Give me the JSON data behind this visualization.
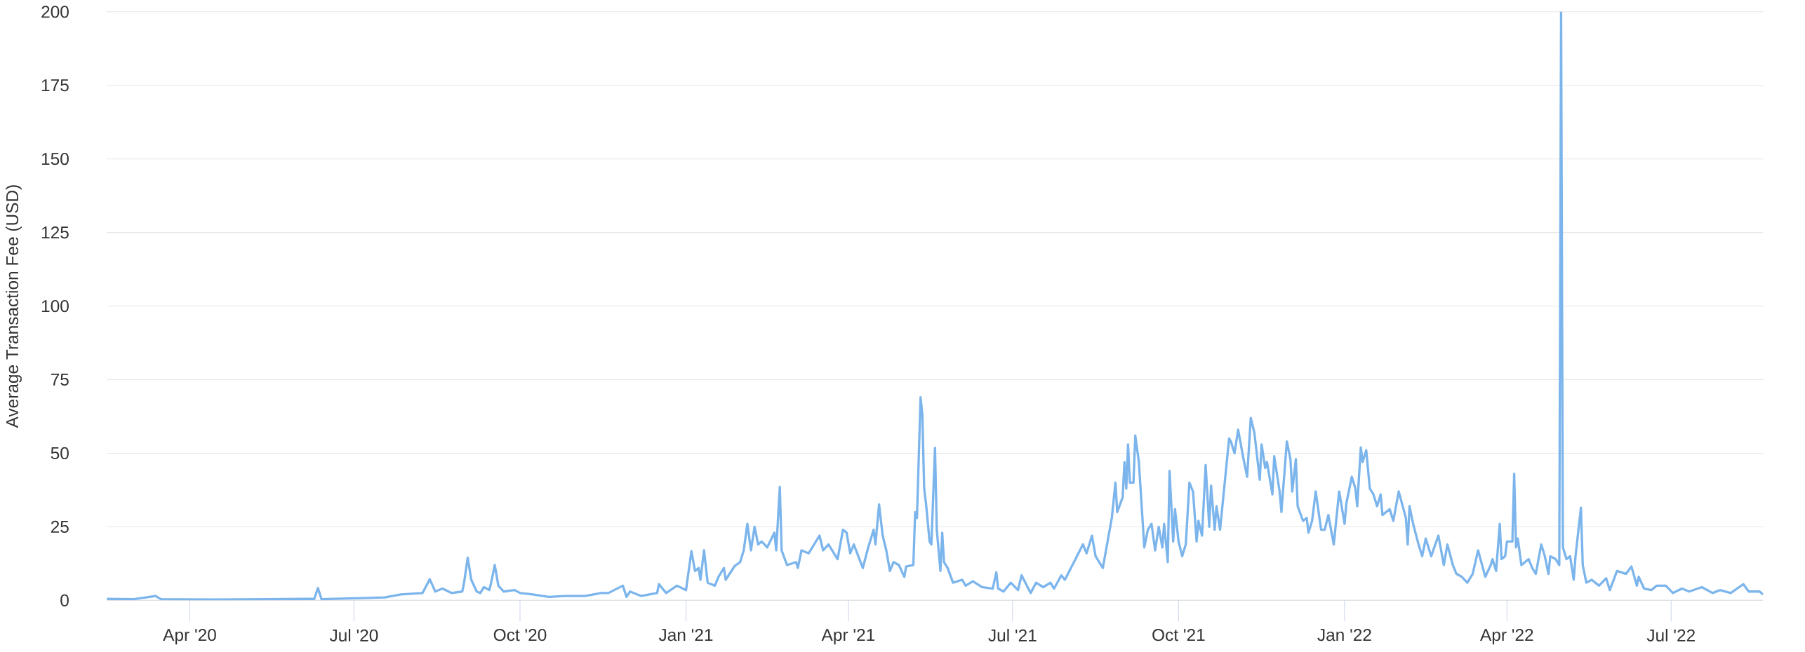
{
  "chart_data": {
    "type": "line",
    "ylabel": "Average Transaction Fee (USD)",
    "xlim": [
      "2020-02-15",
      "2022-08-21"
    ],
    "xticks": [
      {
        "value": "2020-04-01",
        "label": "Apr '20"
      },
      {
        "value": "2020-07-01",
        "label": "Jul '20"
      },
      {
        "value": "2020-10-01",
        "label": "Oct '20"
      },
      {
        "value": "2021-01-01",
        "label": "Jan '21"
      },
      {
        "value": "2021-04-01",
        "label": "Apr '21"
      },
      {
        "value": "2021-07-01",
        "label": "Jul '21"
      },
      {
        "value": "2021-10-01",
        "label": "Oct '21"
      },
      {
        "value": "2022-01-01",
        "label": "Jan '22"
      },
      {
        "value": "2022-04-01",
        "label": "Apr '22"
      },
      {
        "value": "2022-07-01",
        "label": "Jul '22"
      }
    ],
    "ylim": [
      0,
      200
    ],
    "yticks": [
      0,
      25,
      50,
      75,
      100,
      125,
      150,
      175,
      200
    ],
    "grid": "y",
    "marker": "none",
    "line_style": "solid",
    "x": [
      "2020-02-15",
      "2020-03-01",
      "2020-03-13",
      "2020-03-16",
      "2020-04-15",
      "2020-05-15",
      "2020-06-03",
      "2020-06-09",
      "2020-06-11",
      "2020-06-13",
      "2020-07-01",
      "2020-07-18",
      "2020-07-27",
      "2020-08-08",
      "2020-08-12",
      "2020-08-15",
      "2020-08-19",
      "2020-08-24",
      "2020-08-30",
      "2020-08-31",
      "2020-09-02",
      "2020-09-04",
      "2020-09-07",
      "2020-09-09",
      "2020-09-11",
      "2020-09-14",
      "2020-09-15",
      "2020-09-17",
      "2020-09-19",
      "2020-09-22",
      "2020-09-28",
      "2020-10-01",
      "2020-10-08",
      "2020-10-17",
      "2020-10-26",
      "2020-11-06",
      "2020-11-15",
      "2020-11-19",
      "2020-11-27",
      "2020-11-29",
      "2020-12-01",
      "2020-12-07",
      "2020-12-16",
      "2020-12-17",
      "2020-12-21",
      "2020-12-27",
      "2021-01-01",
      "2021-01-04",
      "2021-01-06",
      "2021-01-08",
      "2021-01-09",
      "2021-01-11",
      "2021-01-13",
      "2021-01-17",
      "2021-01-19",
      "2021-01-22",
      "2021-01-23",
      "2021-01-28",
      "2021-01-31",
      "2021-02-02",
      "2021-02-04",
      "2021-02-06",
      "2021-02-08",
      "2021-02-10",
      "2021-02-12",
      "2021-02-15",
      "2021-02-19",
      "2021-02-20",
      "2021-02-22",
      "2021-02-23",
      "2021-02-26",
      "2021-03-03",
      "2021-03-04",
      "2021-03-06",
      "2021-03-10",
      "2021-03-16",
      "2021-03-18",
      "2021-03-21",
      "2021-03-26",
      "2021-03-29",
      "2021-03-31",
      "2021-04-02",
      "2021-04-04",
      "2021-04-09",
      "2021-04-12",
      "2021-04-15",
      "2021-04-16",
      "2021-04-18",
      "2021-04-20",
      "2021-04-22",
      "2021-04-24",
      "2021-04-26",
      "2021-04-29",
      "2021-05-02",
      "2021-05-03",
      "2021-05-07",
      "2021-05-08",
      "2021-05-09",
      "2021-05-11",
      "2021-05-12",
      "2021-05-13",
      "2021-05-14",
      "2021-05-16",
      "2021-05-17",
      "2021-05-19",
      "2021-05-20",
      "2021-05-22",
      "2021-05-23",
      "2021-05-24",
      "2021-05-26",
      "2021-05-29",
      "2021-06-03",
      "2021-06-05",
      "2021-06-09",
      "2021-06-14",
      "2021-06-20",
      "2021-06-22",
      "2021-06-23",
      "2021-06-26",
      "2021-06-30",
      "2021-07-04",
      "2021-07-06",
      "2021-07-11",
      "2021-07-14",
      "2021-07-18",
      "2021-07-22",
      "2021-07-24",
      "2021-07-28",
      "2021-07-30",
      "2021-08-04",
      "2021-08-09",
      "2021-08-11",
      "2021-08-14",
      "2021-08-16",
      "2021-08-18",
      "2021-08-20",
      "2021-08-25",
      "2021-08-27",
      "2021-08-28",
      "2021-08-31",
      "2021-09-01",
      "2021-09-02",
      "2021-09-03",
      "2021-09-04",
      "2021-09-06",
      "2021-09-07",
      "2021-09-09",
      "2021-09-12",
      "2021-09-14",
      "2021-09-16",
      "2021-09-18",
      "2021-09-20",
      "2021-09-22",
      "2021-09-23",
      "2021-09-25",
      "2021-09-26",
      "2021-09-28",
      "2021-09-29",
      "2021-10-01",
      "2021-10-03",
      "2021-10-05",
      "2021-10-07",
      "2021-10-09",
      "2021-10-11",
      "2021-10-12",
      "2021-10-14",
      "2021-10-16",
      "2021-10-18",
      "2021-10-19",
      "2021-10-21",
      "2021-10-22",
      "2021-10-24",
      "2021-10-29",
      "2021-10-30",
      "2021-11-01",
      "2021-11-03",
      "2021-11-06",
      "2021-11-08",
      "2021-11-10",
      "2021-11-12",
      "2021-11-15",
      "2021-11-16",
      "2021-11-18",
      "2021-11-19",
      "2021-11-22",
      "2021-11-23",
      "2021-11-26",
      "2021-11-27",
      "2021-11-30",
      "2021-12-02",
      "2021-12-03",
      "2021-12-05",
      "2021-12-06",
      "2021-12-09",
      "2021-12-11",
      "2021-12-12",
      "2021-12-14",
      "2021-12-16",
      "2021-12-19",
      "2021-12-21",
      "2021-12-23",
      "2021-12-26",
      "2021-12-29",
      "2022-01-01",
      "2022-01-02",
      "2022-01-05",
      "2022-01-07",
      "2022-01-08",
      "2022-01-10",
      "2022-01-11",
      "2022-01-13",
      "2022-01-15",
      "2022-01-17",
      "2022-01-19",
      "2022-01-21",
      "2022-01-22",
      "2022-01-26",
      "2022-01-28",
      "2022-01-31",
      "2022-02-04",
      "2022-02-05",
      "2022-02-06",
      "2022-02-08",
      "2022-02-11",
      "2022-02-13",
      "2022-02-15",
      "2022-02-18",
      "2022-02-22",
      "2022-02-25",
      "2022-02-27",
      "2022-03-02",
      "2022-03-04",
      "2022-03-07",
      "2022-03-10",
      "2022-03-13",
      "2022-03-16",
      "2022-03-20",
      "2022-03-23",
      "2022-03-24",
      "2022-03-26",
      "2022-03-28",
      "2022-03-29",
      "2022-03-31",
      "2022-04-01",
      "2022-04-04",
      "2022-04-05",
      "2022-04-06",
      "2022-04-07",
      "2022-04-09",
      "2022-04-13",
      "2022-04-15",
      "2022-04-17",
      "2022-04-20",
      "2022-04-22",
      "2022-04-24",
      "2022-04-25",
      "2022-04-28",
      "2022-04-30",
      "2022-05-01",
      "2022-05-02",
      "2022-05-04",
      "2022-05-06",
      "2022-05-08",
      "2022-05-09",
      "2022-05-12",
      "2022-05-13",
      "2022-05-15",
      "2022-05-18",
      "2022-05-22",
      "2022-05-26",
      "2022-05-28",
      "2022-06-01",
      "2022-06-06",
      "2022-06-09",
      "2022-06-12",
      "2022-06-13",
      "2022-06-16",
      "2022-06-20",
      "2022-06-23",
      "2022-06-28",
      "2022-07-02",
      "2022-07-07",
      "2022-07-11",
      "2022-07-18",
      "2022-07-24",
      "2022-07-28",
      "2022-08-03",
      "2022-08-10",
      "2022-08-13",
      "2022-08-19",
      "2022-08-21"
    ],
    "series": [
      {
        "color": "#7cb5ec",
        "values": [
          0.5,
          0.4,
          1.5,
          0.4,
          0.3,
          0.4,
          0.5,
          0.5,
          4.2,
          0.4,
          0.7,
          1.0,
          2.0,
          2.5,
          7.2,
          3.0,
          4.0,
          2.5,
          3.0,
          6.0,
          14.5,
          7.0,
          3.0,
          2.5,
          4.5,
          3.5,
          6.0,
          12.0,
          5.0,
          3.0,
          3.5,
          2.5,
          2.0,
          1.2,
          1.5,
          1.5,
          2.5,
          2.5,
          5.0,
          1.2,
          3.0,
          1.5,
          2.5,
          5.5,
          2.5,
          5.0,
          3.5,
          16.7,
          10.0,
          11.0,
          7.0,
          17.0,
          6.0,
          5.0,
          8.0,
          11.0,
          7.0,
          11.7,
          13.0,
          17.0,
          26.0,
          17.0,
          25.0,
          19.0,
          20.0,
          18.0,
          23.0,
          17.0,
          38.6,
          17.0,
          12.0,
          13.0,
          11.0,
          17.0,
          16.0,
          22.0,
          17.0,
          19.0,
          14.0,
          24.0,
          23.0,
          16.0,
          19.0,
          11.0,
          18.0,
          24.0,
          19.0,
          32.6,
          22.0,
          17.0,
          10.0,
          13.0,
          12.0,
          8.0,
          11.5,
          12.0,
          30.0,
          28.0,
          69.0,
          63.0,
          38.0,
          33.0,
          20.0,
          19.0,
          51.8,
          24.0,
          10.0,
          23.0,
          13.0,
          11.0,
          6.0,
          7.0,
          5.0,
          6.5,
          4.5,
          4.0,
          9.5,
          4.0,
          3.0,
          6.0,
          3.5,
          8.5,
          2.5,
          6.0,
          4.5,
          6.0,
          4.0,
          8.5,
          7.0,
          13.0,
          19.0,
          16.0,
          22.0,
          15.0,
          13.0,
          11.0,
          28.0,
          40.0,
          30.0,
          35.0,
          47.0,
          38.0,
          53.0,
          40.0,
          40.0,
          56.0,
          47.0,
          18.0,
          24.0,
          26.0,
          17.0,
          25.0,
          18.0,
          26.0,
          13.0,
          44.0,
          20.0,
          31.0,
          20.0,
          15.0,
          19.0,
          40.0,
          37.0,
          20.0,
          27.0,
          22.0,
          46.0,
          25.0,
          39.0,
          24.0,
          32.0,
          24.0,
          55.0,
          54.0,
          50.0,
          58.0,
          48.0,
          42.0,
          62.0,
          57.0,
          41.0,
          53.0,
          45.0,
          47.0,
          36.0,
          49.0,
          37.0,
          30.0,
          54.0,
          48.0,
          37.0,
          48.0,
          32.0,
          27.0,
          28.0,
          23.0,
          27.0,
          37.0,
          24.0,
          24.0,
          29.0,
          19.0,
          37.0,
          26.0,
          33.0,
          42.0,
          38.0,
          32.0,
          52.0,
          47.0,
          51.0,
          38.0,
          36.0,
          32.0,
          36.0,
          29.0,
          31.0,
          27.0,
          37.0,
          28.0,
          19.0,
          32.0,
          26.0,
          19.0,
          15.0,
          21.0,
          15.0,
          22.0,
          12.0,
          19.0,
          12.0,
          9.0,
          8.0,
          6.0,
          9.0,
          17.0,
          8.0,
          12.0,
          14.0,
          10.0,
          26.0,
          14.0,
          15.0,
          20.0,
          20.0,
          43.0,
          18.0,
          21.0,
          12.0,
          14.0,
          11.0,
          9.0,
          19.0,
          15.0,
          9.0,
          15.0,
          14.0,
          12.0,
          200.0,
          18.0,
          14.0,
          15.0,
          7.0,
          15.0,
          31.5,
          12.0,
          6.0,
          7.0,
          5.0,
          7.5,
          3.5,
          10.0,
          9.0,
          11.5,
          5.0,
          8.0,
          4.0,
          3.5,
          5.0,
          5.0,
          2.5,
          4.0,
          3.0,
          4.5,
          2.5,
          3.5,
          2.5,
          5.5,
          3.0,
          3.0,
          2.0
        ]
      }
    ]
  }
}
